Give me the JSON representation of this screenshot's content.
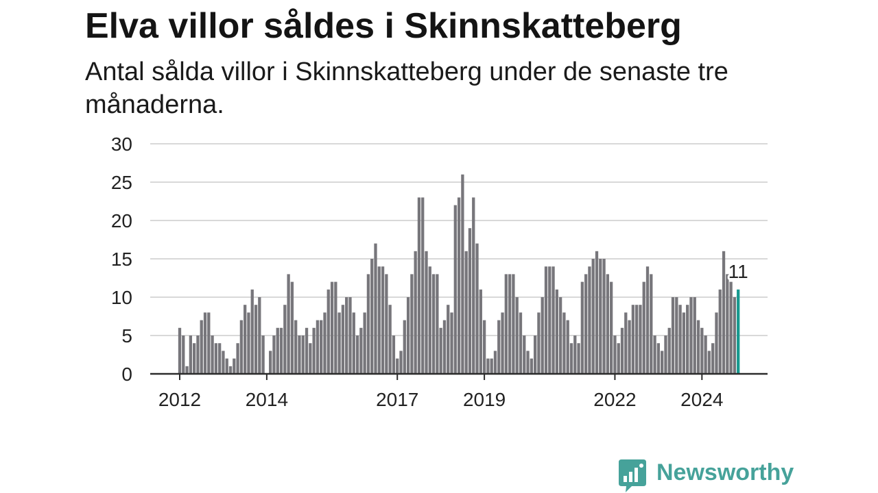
{
  "colors": {
    "bar": "#77767b",
    "highlight": "#16998f",
    "grid": "#d8d8d8",
    "axis": "#2b2b2b",
    "text": "#222222",
    "brand": "#46a29a"
  },
  "logo": {
    "text": "Newsworthy",
    "icon": "bar-chart-speech-bubble-icon"
  },
  "chart_data": {
    "type": "bar",
    "title": "Elva villor såldes i Skinnskatteberg",
    "subtitle": "Antal sålda villor i Skinnskatteberg under de senaste tre månaderna.",
    "xlabel": "",
    "ylabel": "",
    "ylim": [
      0,
      30
    ],
    "y_ticks": [
      0,
      5,
      10,
      15,
      20,
      25,
      30
    ],
    "x_tick_labels": [
      "2012",
      "2014",
      "2017",
      "2019",
      "2022",
      "2024"
    ],
    "grid": true,
    "legend": "none",
    "x": [
      "2012-01",
      "2012-02",
      "2012-03",
      "2012-04",
      "2012-05",
      "2012-06",
      "2012-07",
      "2012-08",
      "2012-09",
      "2012-10",
      "2012-11",
      "2012-12",
      "2013-01",
      "2013-02",
      "2013-03",
      "2013-04",
      "2013-05",
      "2013-06",
      "2013-07",
      "2013-08",
      "2013-09",
      "2013-10",
      "2013-11",
      "2013-12",
      "2014-01",
      "2014-02",
      "2014-03",
      "2014-04",
      "2014-05",
      "2014-06",
      "2014-07",
      "2014-08",
      "2014-09",
      "2014-10",
      "2014-11",
      "2014-12",
      "2015-01",
      "2015-02",
      "2015-03",
      "2015-04",
      "2015-05",
      "2015-06",
      "2015-07",
      "2015-08",
      "2015-09",
      "2015-10",
      "2015-11",
      "2015-12",
      "2016-01",
      "2016-02",
      "2016-03",
      "2016-04",
      "2016-05",
      "2016-06",
      "2016-07",
      "2016-08",
      "2016-09",
      "2016-10",
      "2016-11",
      "2016-12",
      "2017-01",
      "2017-02",
      "2017-03",
      "2017-04",
      "2017-05",
      "2017-06",
      "2017-07",
      "2017-08",
      "2017-09",
      "2017-10",
      "2017-11",
      "2017-12",
      "2018-01",
      "2018-02",
      "2018-03",
      "2018-04",
      "2018-05",
      "2018-06",
      "2018-07",
      "2018-08",
      "2018-09",
      "2018-10",
      "2018-11",
      "2018-12",
      "2019-01",
      "2019-02",
      "2019-03",
      "2019-04",
      "2019-05",
      "2019-06",
      "2019-07",
      "2019-08",
      "2019-09",
      "2019-10",
      "2019-11",
      "2019-12",
      "2020-01",
      "2020-02",
      "2020-03",
      "2020-04",
      "2020-05",
      "2020-06",
      "2020-07",
      "2020-08",
      "2020-09",
      "2020-10",
      "2020-11",
      "2020-12",
      "2021-01",
      "2021-02",
      "2021-03",
      "2021-04",
      "2021-05",
      "2021-06",
      "2021-07",
      "2021-08",
      "2021-09",
      "2021-10",
      "2021-11",
      "2021-12",
      "2022-01",
      "2022-02",
      "2022-03",
      "2022-04",
      "2022-05",
      "2022-06",
      "2022-07",
      "2022-08",
      "2022-09",
      "2022-10",
      "2022-11",
      "2022-12",
      "2023-01",
      "2023-02",
      "2023-03",
      "2023-04",
      "2023-05",
      "2023-06",
      "2023-07",
      "2023-08",
      "2023-09",
      "2023-10",
      "2023-11",
      "2023-12",
      "2024-01",
      "2024-02",
      "2024-03",
      "2024-04",
      "2024-05",
      "2024-06",
      "2024-07",
      "2024-08",
      "2024-09",
      "2024-10",
      "2024-11"
    ],
    "values": [
      6,
      5,
      1,
      5,
      4,
      5,
      7,
      8,
      8,
      5,
      4,
      4,
      3,
      2,
      1,
      2,
      4,
      7,
      9,
      8,
      11,
      9,
      10,
      5,
      0,
      3,
      5,
      6,
      6,
      9,
      13,
      12,
      7,
      5,
      5,
      6,
      4,
      6,
      7,
      7,
      8,
      11,
      12,
      12,
      8,
      9,
      10,
      10,
      8,
      5,
      6,
      8,
      13,
      15,
      17,
      14,
      14,
      13,
      9,
      5,
      2,
      3,
      7,
      10,
      13,
      16,
      23,
      23,
      16,
      14,
      13,
      13,
      6,
      7,
      9,
      8,
      22,
      23,
      26,
      16,
      19,
      23,
      17,
      11,
      7,
      2,
      2,
      3,
      7,
      8,
      13,
      13,
      13,
      10,
      8,
      5,
      3,
      2,
      5,
      8,
      10,
      14,
      14,
      14,
      11,
      10,
      8,
      7,
      4,
      5,
      4,
      12,
      13,
      14,
      15,
      16,
      15,
      15,
      13,
      12,
      5,
      4,
      6,
      8,
      7,
      9,
      9,
      9,
      12,
      14,
      13,
      5,
      4,
      3,
      5,
      6,
      10,
      10,
      9,
      8,
      9,
      10,
      10,
      7,
      6,
      5,
      3,
      4,
      8,
      11,
      16,
      13,
      12,
      10,
      11
    ],
    "highlight": {
      "x": "2024-11"
    },
    "annotations": [
      {
        "x": "2024-11",
        "text": "11"
      }
    ]
  }
}
